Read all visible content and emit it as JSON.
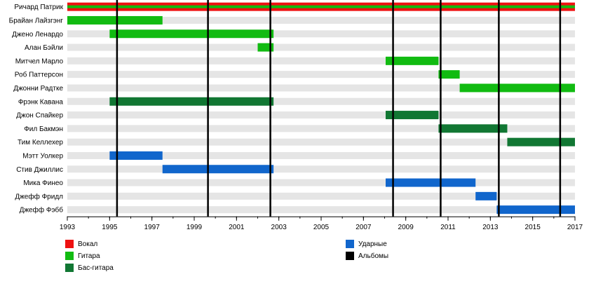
{
  "chart_data": {
    "type": "timeline",
    "x_range": [
      1993,
      2017
    ],
    "ticks": [
      1993,
      1995,
      1997,
      1999,
      2001,
      2003,
      2005,
      2007,
      2009,
      2011,
      2013,
      2015,
      2017
    ],
    "members": [
      {
        "name": "Ричард Патрик"
      },
      {
        "name": "Брайан Лайзгэнг"
      },
      {
        "name": "Джено Ленардо"
      },
      {
        "name": "Алан Бэйли"
      },
      {
        "name": "Митчел Марло"
      },
      {
        "name": "Роб Паттерсон"
      },
      {
        "name": "Джонни Радтке"
      },
      {
        "name": "Фрэнк Кавана"
      },
      {
        "name": "Джон Спайкер"
      },
      {
        "name": "Фил Бакмэн"
      },
      {
        "name": "Тим Келлехер"
      },
      {
        "name": "Мэтт Уолкер"
      },
      {
        "name": "Стив Джиллис"
      },
      {
        "name": "Мика Финео"
      },
      {
        "name": "Джефф Фридл"
      },
      {
        "name": "Джефф Фэбб"
      }
    ],
    "bars": [
      {
        "row": 0,
        "role": "vocals",
        "start": 1993,
        "end": 2017
      },
      {
        "row": 0,
        "role": "guitar",
        "start": 1993,
        "end": 2017
      },
      {
        "row": 1,
        "role": "guitar",
        "start": 1993,
        "end": 1997.5
      },
      {
        "row": 2,
        "role": "guitar",
        "start": 1995,
        "end": 2002.75
      },
      {
        "row": 3,
        "role": "guitar",
        "start": 2002,
        "end": 2002.75
      },
      {
        "row": 4,
        "role": "guitar",
        "start": 2008.05,
        "end": 2010.55
      },
      {
        "row": 5,
        "role": "guitar",
        "start": 2010.55,
        "end": 2011.55
      },
      {
        "row": 6,
        "role": "guitar",
        "start": 2011.55,
        "end": 2017
      },
      {
        "row": 7,
        "role": "bass",
        "start": 1995,
        "end": 2002.75
      },
      {
        "row": 8,
        "role": "bass",
        "start": 2008.05,
        "end": 2010.55
      },
      {
        "row": 9,
        "role": "bass",
        "start": 2010.55,
        "end": 2013.8
      },
      {
        "row": 10,
        "role": "bass",
        "start": 2013.8,
        "end": 2017
      },
      {
        "row": 11,
        "role": "drums",
        "start": 1995,
        "end": 1997.5
      },
      {
        "row": 12,
        "role": "drums",
        "start": 1997.5,
        "end": 2002.75
      },
      {
        "row": 13,
        "role": "drums",
        "start": 2008.05,
        "end": 2012.3
      },
      {
        "row": 14,
        "role": "drums",
        "start": 2012.3,
        "end": 2013.3
      },
      {
        "row": 15,
        "role": "drums",
        "start": 2013.3,
        "end": 2017
      }
    ],
    "albums": [
      1995.35,
      1999.65,
      2002.6,
      2008.4,
      2010.65,
      2013.4,
      2016.3
    ],
    "colors": {
      "vocals": "#ee1111",
      "guitar": "#11bb11",
      "bass": "#117733",
      "drums": "#1166cc",
      "albums": "#000000",
      "stripe": "#e5e5e5"
    },
    "legend": [
      {
        "key": "vocals",
        "label": "Вокал"
      },
      {
        "key": "guitar",
        "label": "Гитара"
      },
      {
        "key": "bass",
        "label": "Бас-гитара"
      },
      {
        "key": "drums",
        "label": "Ударные"
      },
      {
        "key": "albums",
        "label": "Альбомы"
      }
    ]
  }
}
